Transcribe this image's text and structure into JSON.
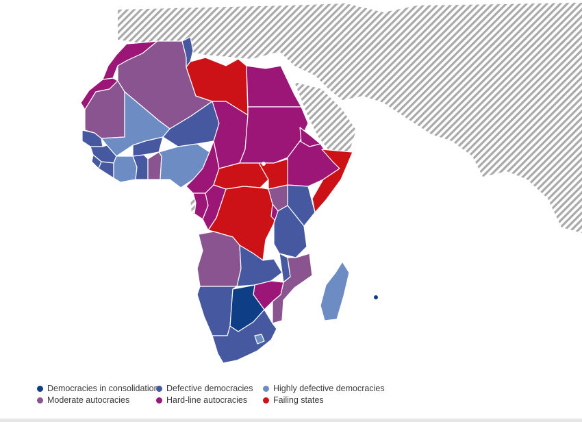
{
  "colors": {
    "democracy_in_consolidation": "#0e3f86",
    "defective_democracy": "#4659a0",
    "highly_defective_democracy": "#6d8cc4",
    "moderate_autocracy": "#8a5490",
    "hardline_autocracy": "#9b1677",
    "failing_state": "#cc1117",
    "other_land_hatch": "#a9a9a9"
  },
  "legend": [
    {
      "label": "Democracies in consolidation",
      "color": "#0e3f86"
    },
    {
      "label": "Defective democracies",
      "color": "#4659a0"
    },
    {
      "label": "Highly defective democracies",
      "color": "#6d8cc4"
    },
    {
      "label": "Moderate autocracies",
      "color": "#8a5490"
    },
    {
      "label": "Hard-line autocracies",
      "color": "#9b1677"
    },
    {
      "label": "Failing states",
      "color": "#cc1117"
    }
  ]
}
